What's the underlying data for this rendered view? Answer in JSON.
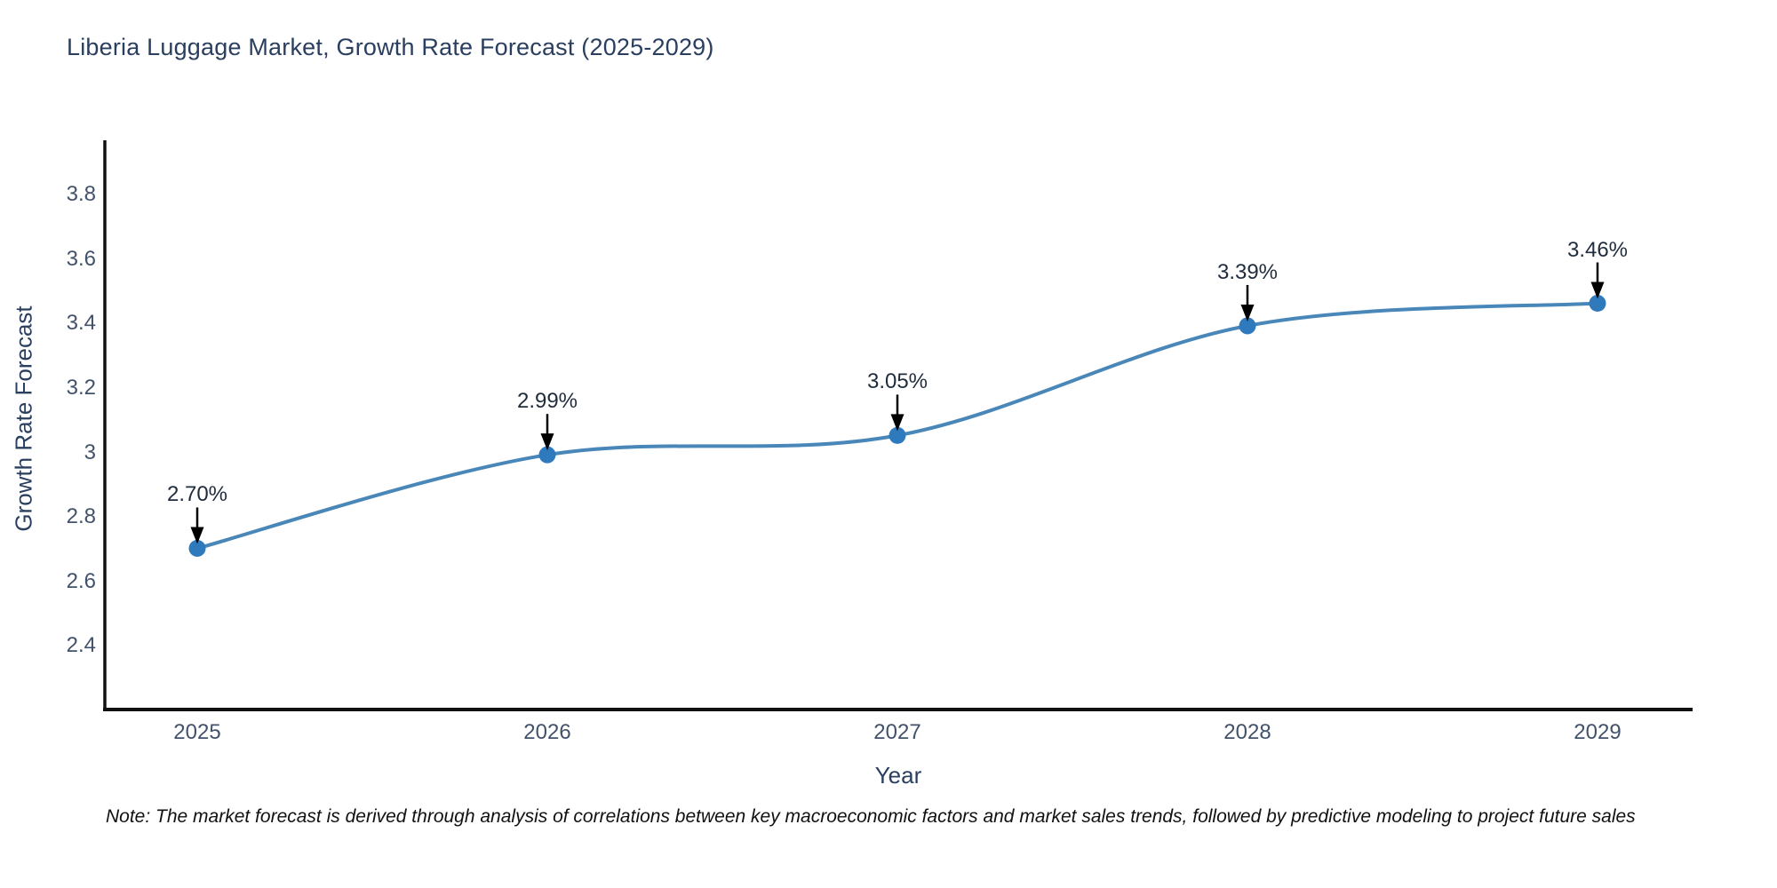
{
  "chart_data": {
    "type": "line",
    "title": "Liberia Luggage Market, Growth Rate Forecast (2025-2029)",
    "xlabel": "Year",
    "ylabel": "Growth Rate Forecast",
    "categories": [
      "2025",
      "2026",
      "2027",
      "2028",
      "2029"
    ],
    "values": [
      2.7,
      2.99,
      3.05,
      3.39,
      3.46
    ],
    "point_labels": [
      "2.70%",
      "2.99%",
      "3.05%",
      "3.39%",
      "3.46%"
    ],
    "ytick_labels": [
      "2.4",
      "2.6",
      "2.8",
      "3",
      "3.2",
      "3.4",
      "3.6",
      "3.8"
    ],
    "ytick_values": [
      2.4,
      2.6,
      2.8,
      3.0,
      3.2,
      3.4,
      3.6,
      3.8
    ],
    "ylim": [
      2.2,
      3.96
    ],
    "line_shape": "spline",
    "grid": false,
    "legend": "none",
    "annotations_style": "value-label-with-down-arrow",
    "colors": {
      "line": "#4a87b9",
      "marker": "#2e7abd",
      "arrow": "#000000",
      "axis": "#111111",
      "title": "#2a3f5f",
      "tick": "#42526b"
    }
  },
  "note": "Note: The market forecast is derived through analysis of correlations between key macroeconomic factors and market sales trends, followed by predictive modeling to project future sales"
}
